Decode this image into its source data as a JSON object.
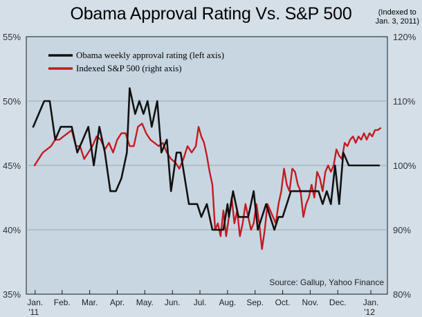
{
  "chart_data": {
    "type": "line",
    "title": "Obama Approval Rating Vs. S&P 500",
    "note": [
      "(Indexed to",
      "Jan. 3, 2011)"
    ],
    "source": "Source: Gallup, Yahoo Finance",
    "left_axis": {
      "ticks": [
        "55%",
        "50%",
        "45%",
        "40%",
        "35%"
      ],
      "values": [
        55,
        50,
        45,
        40,
        35
      ],
      "ylim": [
        35,
        55
      ]
    },
    "right_axis": {
      "ticks": [
        "120%",
        "110%",
        "100%",
        "90%",
        "80%"
      ],
      "values": [
        120,
        110,
        100,
        90,
        80
      ],
      "ylim": [
        80,
        120
      ]
    },
    "x_ticks": [
      {
        "label": "Jan.",
        "sub": "'11",
        "t": 0.02
      },
      {
        "label": "Feb.",
        "sub": "",
        "t": 1.0
      },
      {
        "label": "Mar.",
        "sub": "",
        "t": 2.0
      },
      {
        "label": "Apr.",
        "sub": "",
        "t": 3.0
      },
      {
        "label": "May.",
        "sub": "",
        "t": 4.0
      },
      {
        "label": "Jun.",
        "sub": "",
        "t": 5.0
      },
      {
        "label": "Jul.",
        "sub": "",
        "t": 6.0
      },
      {
        "label": "Aug.",
        "sub": "",
        "t": 7.0
      },
      {
        "label": "Sep.",
        "sub": "",
        "t": 8.0
      },
      {
        "label": "Oct.",
        "sub": "",
        "t": 9.0
      },
      {
        "label": "Nov.",
        "sub": "",
        "t": 10.0
      },
      {
        "label": "Dec.",
        "sub": "",
        "t": 11.0
      },
      {
        "label": "Jan.",
        "sub": "'12",
        "t": 12.2
      }
    ],
    "xlim": [
      -0.3,
      12.8
    ],
    "legend": [
      "Obama weekly approval rating (left axis)",
      "Indexed S&P 500 (right axis)"
    ],
    "series": [
      {
        "name": "Obama weekly approval rating (left axis)",
        "axis": "left",
        "color": "#111111",
        "x": [
          -0.05,
          0.35,
          0.55,
          0.75,
          0.95,
          1.15,
          1.35,
          1.55,
          1.75,
          1.95,
          2.15,
          2.35,
          2.55,
          2.75,
          2.95,
          3.15,
          3.35,
          3.45,
          3.65,
          3.8,
          3.95,
          4.1,
          4.25,
          4.45,
          4.6,
          4.8,
          4.95,
          5.15,
          5.3,
          5.45,
          5.6,
          5.75,
          5.9,
          6.05,
          6.25,
          6.45,
          6.65,
          6.85,
          7.0,
          7.05,
          7.2,
          7.4,
          7.6,
          7.75,
          7.95,
          8.1,
          8.25,
          8.4,
          8.55,
          8.7,
          8.85,
          9.0,
          9.15,
          9.3,
          9.45,
          9.6,
          9.75,
          9.9,
          10.1,
          10.3,
          10.45,
          10.6,
          10.75,
          10.9,
          11.05,
          11.2,
          11.4,
          11.6,
          11.75,
          11.9,
          12.05,
          12.2,
          12.5
        ],
        "values": [
          48,
          50,
          50,
          47,
          48,
          48,
          48,
          46,
          47,
          48,
          45,
          48,
          46,
          43,
          43,
          44,
          46,
          51,
          49,
          50,
          49,
          50,
          48,
          50,
          46,
          47,
          43,
          46,
          46,
          44,
          42,
          42,
          42,
          41,
          42,
          40,
          40,
          40,
          42,
          41,
          43,
          41,
          41,
          41,
          43,
          40,
          41,
          42,
          41,
          40,
          41,
          41,
          42,
          43,
          43,
          43,
          43,
          43,
          43,
          43,
          42,
          43,
          42,
          45,
          42,
          46,
          45,
          45,
          45,
          45,
          45,
          45,
          45
        ]
      },
      {
        "name": "Indexed S&P 500 (right axis)",
        "axis": "right",
        "color": "#c61a21",
        "x": [
          0.0,
          0.15,
          0.3,
          0.45,
          0.6,
          0.75,
          0.9,
          1.05,
          1.2,
          1.35,
          1.5,
          1.65,
          1.8,
          1.95,
          2.1,
          2.25,
          2.4,
          2.55,
          2.7,
          2.85,
          3.0,
          3.15,
          3.3,
          3.45,
          3.6,
          3.75,
          3.9,
          4.05,
          4.2,
          4.35,
          4.5,
          4.65,
          4.8,
          4.95,
          5.1,
          5.25,
          5.4,
          5.55,
          5.7,
          5.85,
          5.95,
          6.05,
          6.15,
          6.25,
          6.35,
          6.45,
          6.55,
          6.65,
          6.75,
          6.85,
          6.95,
          7.05,
          7.15,
          7.25,
          7.35,
          7.45,
          7.55,
          7.65,
          7.75,
          7.85,
          7.95,
          8.05,
          8.15,
          8.25,
          8.35,
          8.45,
          8.55,
          8.65,
          8.75,
          8.85,
          8.95,
          9.05,
          9.15,
          9.25,
          9.35,
          9.45,
          9.55,
          9.65,
          9.75,
          9.85,
          9.95,
          10.05,
          10.15,
          10.25,
          10.35,
          10.45,
          10.55,
          10.65,
          10.75,
          10.85,
          10.95,
          11.05,
          11.15,
          11.25,
          11.35,
          11.45,
          11.55,
          11.65,
          11.75,
          11.85,
          11.95,
          12.05,
          12.15,
          12.25,
          12.35,
          12.45,
          12.55
        ],
        "values": [
          100,
          101,
          102,
          102.5,
          103,
          104,
          104,
          104.5,
          105,
          105.5,
          103,
          103,
          101,
          102,
          103,
          104.5,
          104,
          102.5,
          103.5,
          102,
          104,
          105,
          105,
          103,
          103,
          106,
          106.5,
          105,
          104,
          103.5,
          103,
          103.5,
          102,
          101,
          100.5,
          99.5,
          101,
          103,
          102,
          103,
          106,
          104.5,
          103.5,
          101.5,
          99,
          97,
          90,
          91,
          89,
          93,
          89,
          92,
          95,
          91,
          93,
          89,
          91,
          94,
          92,
          90,
          91,
          94,
          91,
          87,
          90,
          94,
          93,
          92,
          91,
          94,
          96,
          99.5,
          97,
          96,
          99.5,
          99,
          97,
          96,
          92,
          94,
          95,
          97,
          95,
          99,
          98,
          96,
          99,
          100,
          99,
          100,
          102.5,
          101.5,
          101,
          103.5,
          103,
          104,
          104.5,
          103.5,
          104.5,
          104,
          105,
          104,
          105,
          104.5,
          105.5,
          105.5,
          105.8
        ]
      }
    ]
  }
}
